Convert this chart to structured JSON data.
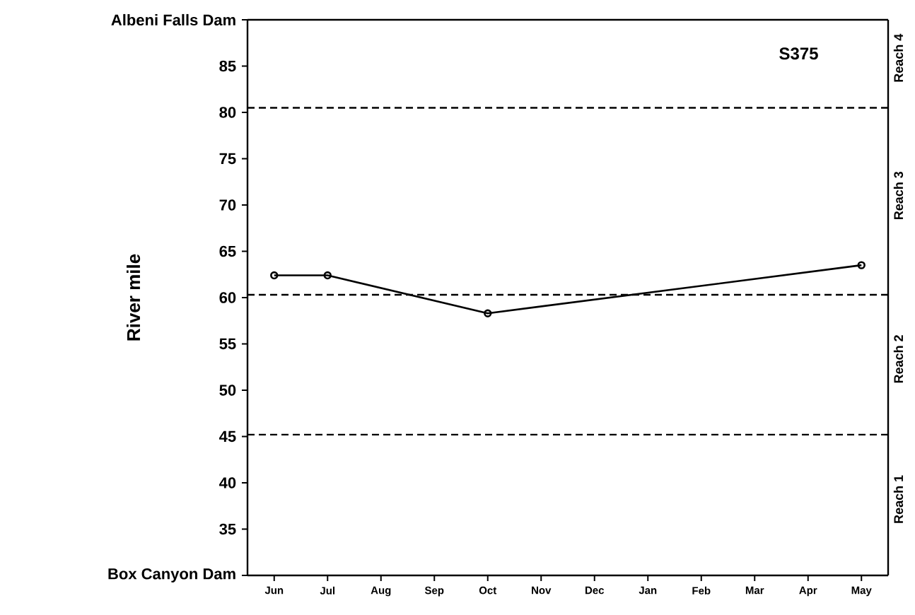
{
  "chart_data": {
    "type": "line",
    "ylabel": "River    mile",
    "categories": [
      "Jun",
      "Jul",
      "Aug",
      "Sep",
      "Oct",
      "Nov",
      "Dec",
      "Jan",
      "Feb",
      "Mar",
      "Apr",
      "May"
    ],
    "series": [
      {
        "color": "#000000",
        "values": [
          62.4,
          62.4,
          null,
          null,
          58.3,
          null,
          null,
          null,
          null,
          null,
          null,
          63.5
        ]
      }
    ],
    "ylim": [
      30,
      90
    ],
    "yticks": [
      {
        "value": 30,
        "label": "Box Canyon Dam"
      },
      35,
      40,
      45,
      50,
      55,
      60,
      65,
      70,
      75,
      80,
      85,
      {
        "value": 90,
        "label": "Albeni Falls Dam"
      }
    ],
    "ref_lines": [
      {
        "axis": "y",
        "value": 80.5,
        "color": "#000000",
        "line_style": "dashed"
      },
      {
        "axis": "y",
        "value": 60.3,
        "color": "#000000",
        "line_style": "dashed"
      },
      {
        "axis": "y",
        "value": 45.2,
        "color": "#000000",
        "line_style": "dashed"
      }
    ],
    "annotations": [
      "S375",
      "Reach 1",
      "Reach 2",
      "Reach 3",
      "Reach 4"
    ],
    "marker": "circle",
    "line_style": "solid"
  }
}
